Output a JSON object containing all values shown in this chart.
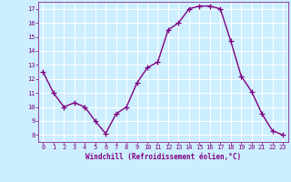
{
  "x": [
    0,
    1,
    2,
    3,
    4,
    5,
    6,
    7,
    8,
    9,
    10,
    11,
    12,
    13,
    14,
    15,
    16,
    17,
    18,
    19,
    20,
    21,
    22,
    23
  ],
  "y": [
    12.5,
    11.0,
    10.0,
    10.3,
    10.0,
    9.0,
    8.1,
    9.5,
    10.0,
    11.7,
    12.8,
    13.2,
    15.5,
    16.0,
    17.0,
    17.2,
    17.2,
    17.0,
    14.7,
    12.2,
    11.1,
    9.5,
    8.3,
    8.0
  ],
  "line_color": "#800080",
  "marker": "+",
  "marker_size": 4,
  "bg_color": "#cceeff",
  "grid_color": "#ffffff",
  "xlabel": "Windchill (Refroidissement éolien,°C)",
  "xlabel_color": "#800080",
  "tick_color": "#800080",
  "xlim": [
    -0.5,
    23.5
  ],
  "ylim": [
    7.5,
    17.5
  ],
  "yticks": [
    8,
    9,
    10,
    11,
    12,
    13,
    14,
    15,
    16,
    17
  ],
  "xticks": [
    0,
    1,
    2,
    3,
    4,
    5,
    6,
    7,
    8,
    9,
    10,
    11,
    12,
    13,
    14,
    15,
    16,
    17,
    18,
    19,
    20,
    21,
    22,
    23
  ],
  "xtick_labels": [
    "0",
    "1",
    "2",
    "3",
    "4",
    "5",
    "6",
    "7",
    "8",
    "9",
    "10",
    "11",
    "12",
    "13",
    "14",
    "15",
    "16",
    "17",
    "18",
    "19",
    "20",
    "21",
    "22",
    "23"
  ],
  "ytick_labels": [
    "8",
    "9",
    "10",
    "11",
    "12",
    "13",
    "14",
    "15",
    "16",
    "17"
  ],
  "linewidth": 1.0
}
